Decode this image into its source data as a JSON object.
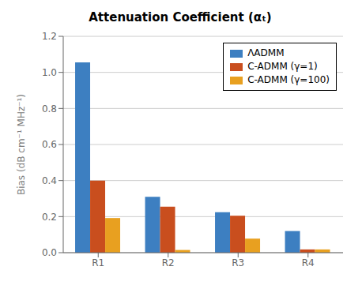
{
  "chart_data": {
    "type": "bar",
    "title": "Attenuation Coefficient (αₜ)",
    "ylabel": "Bias (dB cm⁻¹ MHz⁻¹)",
    "categories": [
      "R1",
      "R2",
      "R3",
      "R4"
    ],
    "series": [
      {
        "name": "ΛADMM",
        "color": "#3d7fc1",
        "values": [
          1.055,
          0.31,
          0.225,
          0.12
        ]
      },
      {
        "name": "C-ADMM (γ=1)",
        "color": "#c94e1e",
        "values": [
          0.4,
          0.255,
          0.205,
          0.018
        ]
      },
      {
        "name": "C-ADMM (γ=100)",
        "color": "#e8a020",
        "values": [
          0.192,
          0.015,
          0.078,
          0.018
        ]
      }
    ],
    "ylim": [
      0,
      1.2
    ],
    "yticks": [
      {
        "value": 0,
        "label": "0.0"
      },
      0.2,
      0.4,
      0.6,
      0.8,
      {
        "value": 1,
        "label": "1.0"
      },
      1.2
    ],
    "grid": true,
    "legend": "upper right"
  }
}
